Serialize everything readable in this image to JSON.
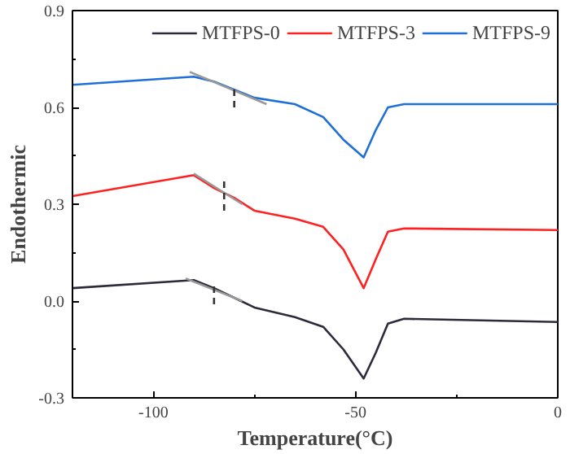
{
  "chart_data": {
    "type": "line",
    "xlabel": "Temperature(°C)",
    "ylabel": "Endothermic",
    "xlim": [
      -120,
      0
    ],
    "ylim": [
      -0.3,
      0.9
    ],
    "xticks": [
      -100,
      -50,
      0
    ],
    "yticks": [
      {
        "value": -0.3,
        "label": "-0.3"
      },
      {
        "value": 0,
        "label": "0.0"
      },
      {
        "value": 0.3,
        "label": "0.3"
      },
      {
        "value": 0.6,
        "label": "0.6"
      },
      {
        "value": 0.9,
        "label": "0.9"
      }
    ],
    "grid": false,
    "legend": "top",
    "x": [
      -120,
      -90,
      -85,
      -80,
      -75,
      -65,
      -58,
      -53,
      -48,
      -45,
      -42,
      -38,
      0
    ],
    "series": [
      {
        "name": "MTFPS-0",
        "color": "#2b2b3b",
        "values": [
          0.04,
          0.065,
          0.04,
          0.01,
          -0.02,
          -0.05,
          -0.08,
          -0.15,
          -0.24,
          -0.16,
          -0.07,
          -0.055,
          -0.065
        ]
      },
      {
        "name": "MTFPS-3",
        "color": "#ff2020",
        "values": [
          0.325,
          0.39,
          0.35,
          0.32,
          0.28,
          0.255,
          0.23,
          0.16,
          0.04,
          0.13,
          0.215,
          0.225,
          0.22
        ]
      },
      {
        "name": "MTFPS-9",
        "color": "#1f6fd8",
        "values": [
          0.67,
          0.695,
          0.68,
          0.655,
          0.63,
          0.61,
          0.57,
          0.5,
          0.445,
          0.53,
          0.6,
          0.61,
          0.61
        ]
      },
      {
        "color": "#999999",
        "x": [
          -91,
          -72
        ],
        "values": [
          0.71,
          0.61
        ]
      },
      {
        "color": "#999999",
        "x": [
          -90,
          -78
        ],
        "values": [
          0.395,
          0.3
        ]
      },
      {
        "color": "#999999",
        "x": [
          -92,
          -78
        ],
        "values": [
          0.07,
          0.0
        ]
      },
      {
        "color": "#333333",
        "line_style": "dashed",
        "x": [
          -80,
          -80
        ],
        "values": [
          0.6,
          0.67
        ]
      },
      {
        "color": "#333333",
        "line_style": "dashed",
        "x": [
          -82.5,
          -82.5
        ],
        "values": [
          0.28,
          0.38
        ]
      },
      {
        "color": "#333333",
        "line_style": "dashed",
        "x": [
          -85,
          -85
        ],
        "values": [
          -0.01,
          0.06
        ]
      }
    ]
  }
}
